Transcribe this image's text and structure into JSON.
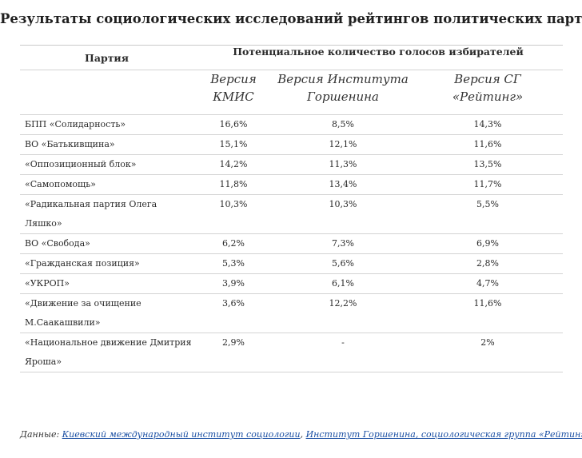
{
  "title": "Результаты социологических исследований рейтингов политических партий",
  "table": {
    "party_header": "Партия",
    "votes_header": "Потенциальное количество голосов избирателей",
    "versions": [
      {
        "line1": "Версия",
        "line2": "КМИС"
      },
      {
        "line1": "Версия Института",
        "line2": "Горшенина"
      },
      {
        "line1": "Версия СГ",
        "line2": "«Рейтинг»"
      }
    ],
    "rows": [
      {
        "party": "БПП «Солидарность»",
        "kmis": "16,6%",
        "gorshenin": "8,5%",
        "rating": "14,3%"
      },
      {
        "party": "ВО «Батькивщина»",
        "kmis": "15,1%",
        "gorshenin": "12,1%",
        "rating": "11,6%"
      },
      {
        "party": "«Оппозиционный блок»",
        "kmis": "14,2%",
        "gorshenin": "11,3%",
        "rating": "13,5%"
      },
      {
        "party": "«Самопомощь»",
        "kmis": "11,8%",
        "gorshenin": "13,4%",
        "rating": "11,7%"
      },
      {
        "party": "«Радикальная партия Олега Ляшко»",
        "kmis": "10,3%",
        "gorshenin": "10,3%",
        "rating": "5,5%"
      },
      {
        "party": "ВО «Свобода»",
        "kmis": "6,2%",
        "gorshenin": "7,3%",
        "rating": "6,9%"
      },
      {
        "party": "«Гражданская позиция»",
        "kmis": "5,3%",
        "gorshenin": "5,6%",
        "rating": "2,8%"
      },
      {
        "party": "«УКРОП»",
        "kmis": "3,9%",
        "gorshenin": "6,1%",
        "rating": "4,7%"
      },
      {
        "party": "«Движение за очищение М.Саакашвили»",
        "kmis": "3,6%",
        "gorshenin": "12,2%",
        "rating": "11,6%"
      },
      {
        "party": "«Национальное движение Дмитрия Яроша»",
        "kmis": "2,9%",
        "gorshenin": "-",
        "rating": "2%"
      }
    ]
  },
  "source": {
    "label": "Данные:",
    "links": [
      "Киевский международный институт социологии",
      "Институт Горшенина, социологическая группа «Рейтинг»"
    ],
    "separator": ","
  }
}
